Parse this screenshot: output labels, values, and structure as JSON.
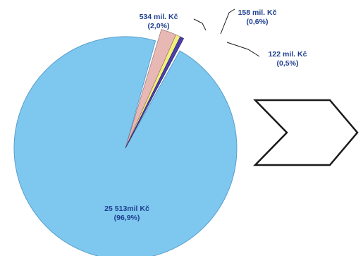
{
  "chart_data": {
    "type": "pie",
    "slices": [
      {
        "value_label": "25 513mil Kč",
        "percent_label": "(96,9%)",
        "value": 96.9,
        "color": "#7ec8f0"
      },
      {
        "value_label": "534 mil. Kč",
        "percent_label": "(2,0%)",
        "value": 2.0,
        "color": "#e8b8b4"
      },
      {
        "value_label": "158 mil. Kč",
        "percent_label": "(0,6%)",
        "value": 0.6,
        "color": "#f2f07a"
      },
      {
        "value_label": "122 mil. Kč",
        "percent_label": "(0,5%)",
        "value": 0.5,
        "color": "#4a3fa8"
      }
    ],
    "label_color": "#1f3f8f",
    "grid": false,
    "legend": "none"
  },
  "shape": {
    "type": "chevron-arrow",
    "stroke_color": "#1a1a1a",
    "fill_color": "#ffffff"
  }
}
